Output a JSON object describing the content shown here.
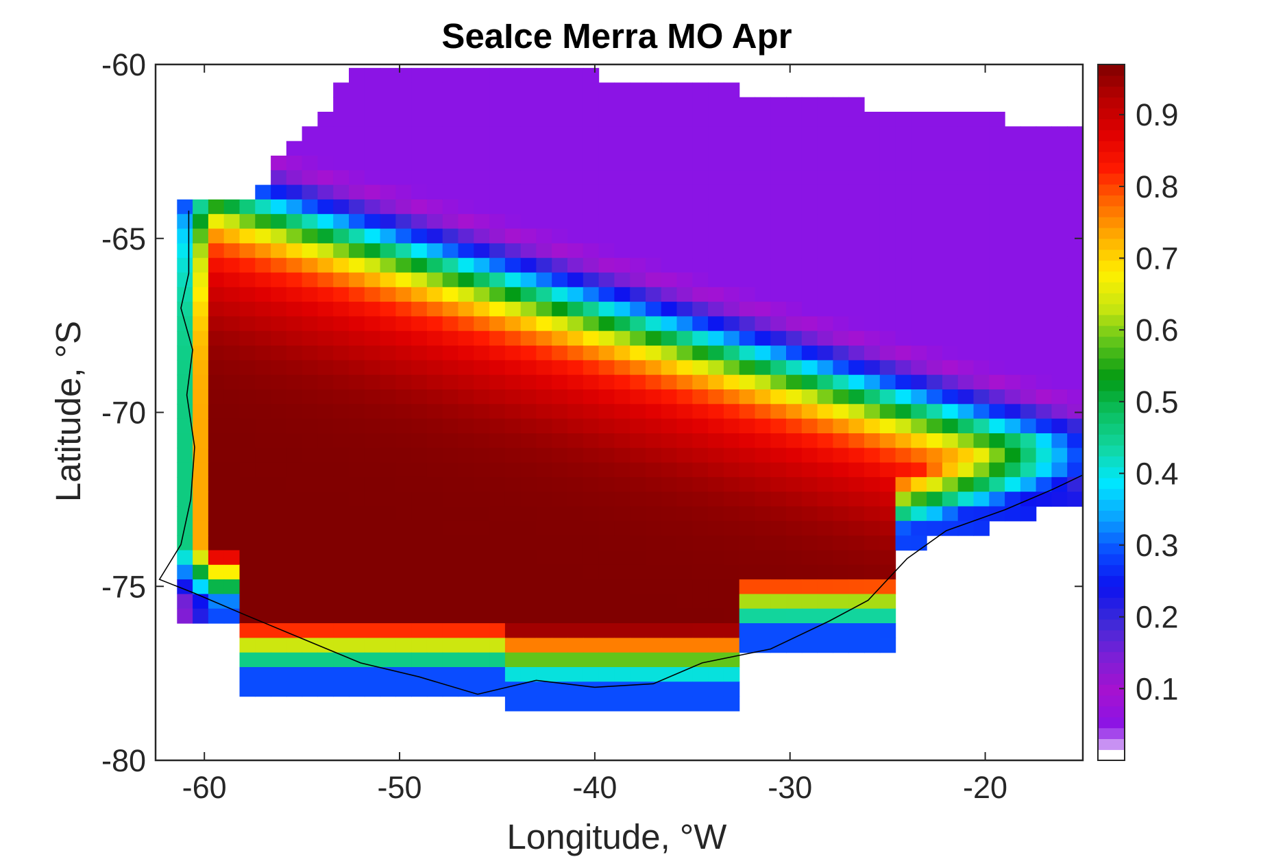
{
  "chart_data": {
    "type": "heatmap",
    "title": "SeaIce Merra MO Apr",
    "xlabel": "Longitude, °W",
    "ylabel": "Latitude, °S",
    "xlim": [
      -62.5,
      -15
    ],
    "ylim": [
      -80,
      -60
    ],
    "x_ticks": [
      "-60",
      "-50",
      "-40",
      "-30",
      "-20"
    ],
    "y_ticks": [
      "-60",
      "-65",
      "-70",
      "-75",
      "-80"
    ],
    "colorbar": {
      "range": [
        0,
        0.97
      ],
      "ticks": [
        "0.1",
        "0.2",
        "0.3",
        "0.4",
        "0.5",
        "0.6",
        "0.7",
        "0.8",
        "0.9"
      ],
      "colormap": [
        "#ffffff",
        "#8a14e6",
        "#a612d0",
        "#7b1fd6",
        "#3c2ad8",
        "#0c12f0",
        "#0a4cff",
        "#0aa5ff",
        "#00e8ff",
        "#12d6a0",
        "#0bc060",
        "#039a12",
        "#5ec41a",
        "#c8e610",
        "#fff000",
        "#ffb000",
        "#ff6a00",
        "#ff1a00",
        "#e00000",
        "#b80000",
        "#800000"
      ]
    },
    "grid": false,
    "description_fields": {
      "ice_concentration_pattern": "high concentration (0.85–0.97) in western and central Weddell Sea (-58 to -35°W, -66 to -77°S), decreasing northward and eastward through yellow/green/cyan bands to low values (0.05–0.2) near 60–63°S",
      "coastline": "Antarctic Peninsula and Weddell Sea coast outline in black"
    }
  }
}
